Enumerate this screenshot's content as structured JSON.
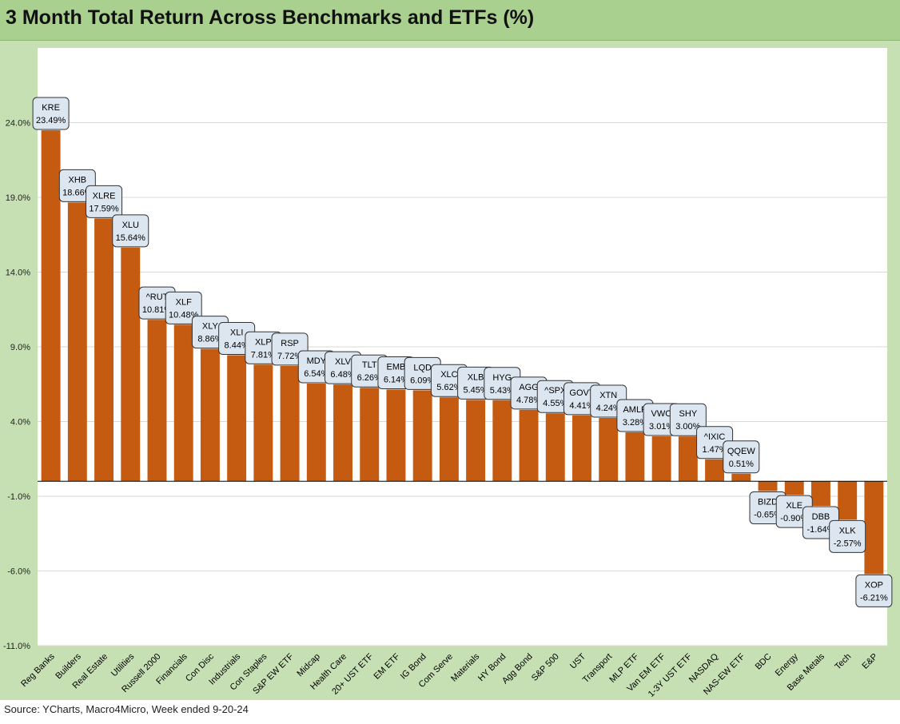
{
  "title": "3 Month Total Return Across Benchmarks and ETFs (%)",
  "source": "Source: YCharts, Macro4Micro, Week ended 9-20-24",
  "colors": {
    "bar": "#c55a11",
    "frame": "#c6e0b4",
    "title_bar": "#a9d08e",
    "label_box": "#dce6f1"
  },
  "chart_data": {
    "type": "bar",
    "title": "3 Month Total Return Across Benchmarks and ETFs (%)",
    "xlabel": "",
    "ylabel": "",
    "ylim": [
      -11,
      29
    ],
    "y_ticks": [
      24,
      19,
      14,
      9,
      4,
      -1,
      -6,
      -11
    ],
    "y_tick_labels": [
      "24.0%",
      "19.0%",
      "14.0%",
      "9.0%",
      "4.0%",
      "-1.0%",
      "-6.0%",
      "-11.0%"
    ],
    "grid": true,
    "categories": [
      "Reg Banks",
      "Builders",
      "Real Estate",
      "Utilities",
      "Russell 2000",
      "Financials",
      "Con Disc",
      "Industrials",
      "Con Staples",
      "S&P EW ETF",
      "Midcap",
      "Health Care",
      "20+ UST ETF",
      "EM ETF",
      "IG Bond",
      "Com Serve",
      "Materials",
      "HY Bond",
      "Agg Bond",
      "S&P 500",
      "UST",
      "Transport",
      "MLP ETF",
      "Van EM ETF",
      "1-3Y UST ETF",
      "NASDAQ",
      "NAS-EW ETF",
      "BDC",
      "Energy",
      "Base Metals",
      "Tech",
      "E&P"
    ],
    "tickers": [
      "KRE",
      "XHB",
      "XLRE",
      "XLU",
      "^RUT",
      "XLF",
      "XLY",
      "XLI",
      "XLP",
      "RSP",
      "MDY",
      "XLV",
      "TLT",
      "EMB",
      "LQD",
      "XLC",
      "XLB",
      "HYG",
      "AGG",
      "^SPX",
      "GOVT",
      "XTN",
      "AMLP",
      "VWO",
      "SHY",
      "^IXIC",
      "QQEW",
      "BIZD",
      "XLE",
      "DBB",
      "XLK",
      "XOP"
    ],
    "values": [
      23.49,
      18.66,
      17.59,
      15.64,
      10.81,
      10.48,
      8.86,
      8.44,
      7.81,
      7.72,
      6.54,
      6.48,
      6.26,
      6.14,
      6.09,
      5.62,
      5.45,
      5.43,
      4.78,
      4.55,
      4.41,
      4.24,
      3.28,
      3.01,
      3.0,
      1.47,
      0.51,
      -0.65,
      -0.9,
      -1.64,
      -2.57,
      -6.21
    ],
    "value_labels": [
      "23.49%",
      "18.66%",
      "17.59%",
      "15.64%",
      "10.81%",
      "10.48%",
      "8.86%",
      "8.44%",
      "7.81%",
      "7.72%",
      "6.54%",
      "6.48%",
      "6.26%",
      "6.14%",
      "6.09%",
      "5.62%",
      "5.45%",
      "5.43%",
      "4.78%",
      "4.55%",
      "4.41%",
      "4.24%",
      "3.28%",
      "3.01%",
      "3.00%",
      "1.47%",
      "0.51%",
      "-0.65%",
      "-0.90%",
      "-1.64%",
      "-2.57%",
      "-6.21%"
    ]
  }
}
